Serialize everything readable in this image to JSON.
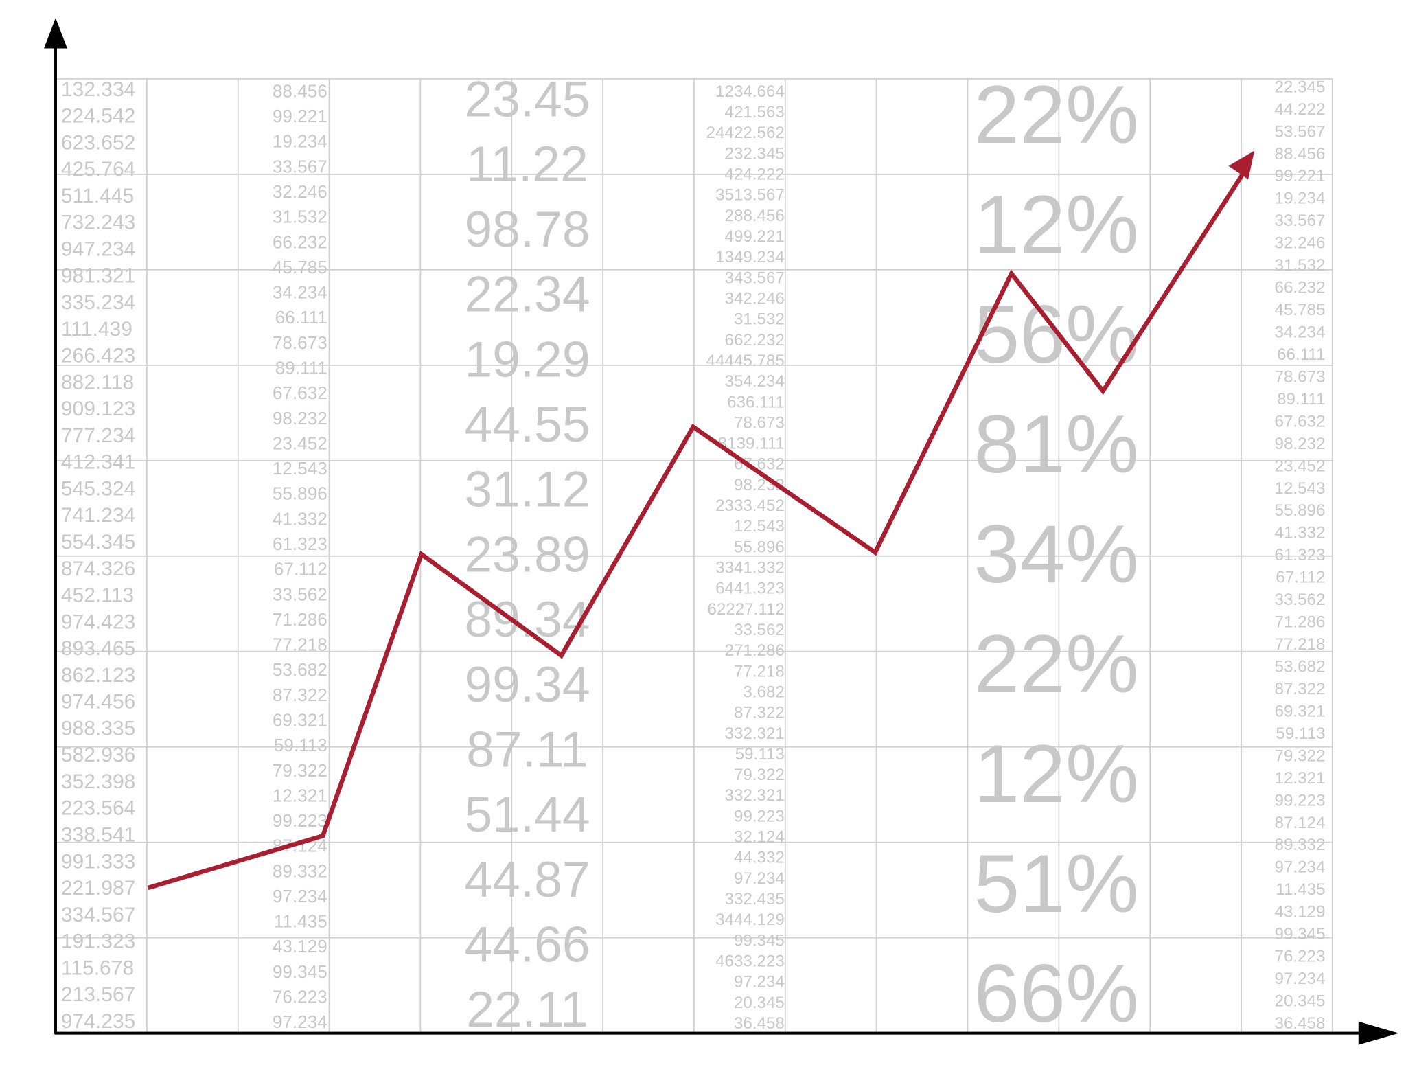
{
  "columns": [
    {
      "values": [
        "132.334",
        "224.542",
        "623.652",
        "425.764",
        "511.445",
        "732.243",
        "947.234",
        "981.321",
        "335.234",
        "111.439",
        "266.423",
        "882.118",
        "909.123",
        "777.234",
        "412.341",
        "545.324",
        "741.234",
        "554.345",
        "874.326",
        "452.113",
        "974.423",
        "893.465",
        "862.123",
        "974.456",
        "988.335",
        "582.936",
        "352.398",
        "223.564",
        "338.541",
        "991.333",
        "221.987",
        "334.567",
        "191.323",
        "115.678",
        "213.567",
        "974.235"
      ]
    },
    {
      "values": [
        "88.456",
        "99.221",
        "19.234",
        "33.567",
        "32.246",
        "31.532",
        "66.232",
        "45.785",
        "34.234",
        "66.111",
        "78.673",
        "89.111",
        "67.632",
        "98.232",
        "23.452",
        "12.543",
        "55.896",
        "41.332",
        "61.323",
        "67.112",
        "33.562",
        "71.286",
        "77.218",
        "53.682",
        "87.322",
        "69.321",
        "59.113",
        "79.322",
        "12.321",
        "99.223",
        "87.124",
        "89.332",
        "97.234",
        "11.435",
        "43.129",
        "99.345",
        "76.223",
        "97.234"
      ]
    },
    {
      "values": [
        "23.45",
        "11.22",
        "98.78",
        "22.34",
        "19.29",
        "44.55",
        "31.12",
        "23.89",
        "89.34",
        "99.34",
        "87.11",
        "51.44",
        "44.87",
        "44.66",
        "22.11"
      ]
    },
    {
      "values": [
        "1234.664",
        "421.563",
        "24422.562",
        "232.345",
        "424.222",
        "3513.567",
        "288.456",
        "499.221",
        "1349.234",
        "343.567",
        "342.246",
        "31.532",
        "662.232",
        "44445.785",
        "354.234",
        "636.111",
        "78.673",
        "8139.111",
        "67.632",
        "98.232",
        "2333.452",
        "12.543",
        "55.896",
        "3341.332",
        "6441.323",
        "62227.112",
        "33.562",
        "271.286",
        "77.218",
        "3.682",
        "87.322",
        "332.321",
        "59.113",
        "79.322",
        "332.321",
        "99.223",
        "32.124",
        "44.332",
        "97.234",
        "332.435",
        "3444.129",
        "99.345",
        "4633.223",
        "97.234",
        "20.345",
        "36.458"
      ]
    },
    {
      "values": [
        "22%",
        "12%",
        "56%",
        "81%",
        "34%",
        "22%",
        "12%",
        "51%",
        "66%"
      ]
    },
    {
      "values": [
        "22.345",
        "44.222",
        "53.567",
        "88.456",
        "99.221",
        "19.234",
        "33.567",
        "32.246",
        "31.532",
        "66.232",
        "45.785",
        "34.234",
        "66.111",
        "78.673",
        "89.111",
        "67.632",
        "98.232",
        "23.452",
        "12.543",
        "55.896",
        "41.332",
        "61.323",
        "67.112",
        "33.562",
        "71.286",
        "77.218",
        "53.682",
        "87.322",
        "69.321",
        "59.113",
        "79.322",
        "12.321",
        "99.223",
        "87.124",
        "89.332",
        "97.234",
        "11.435",
        "43.129",
        "99.345",
        "76.223",
        "97.234",
        "20.345",
        "36.458"
      ]
    }
  ]
}
